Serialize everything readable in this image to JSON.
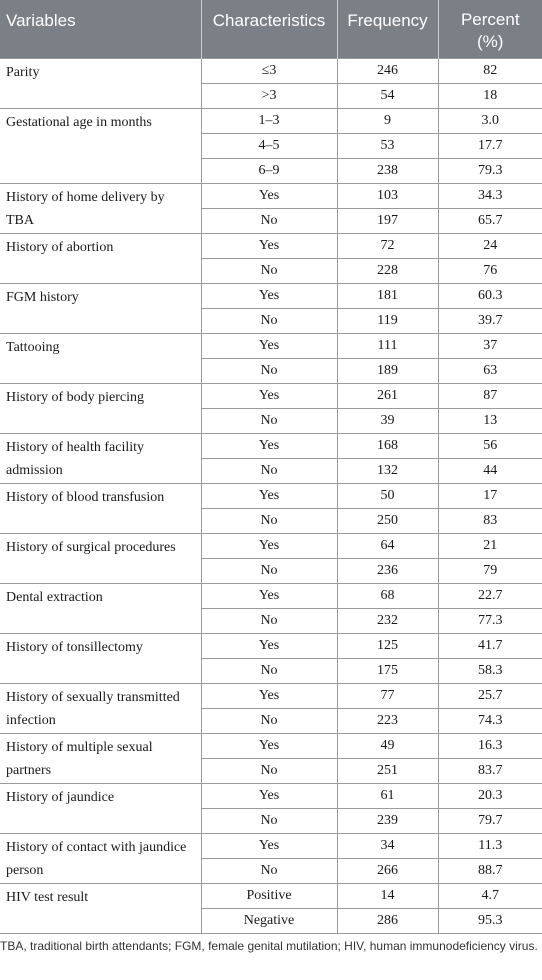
{
  "table": {
    "headers": {
      "variables": "Variables",
      "characteristics": "Characteristics",
      "frequency": "Frequency",
      "percent_line1": "Percent",
      "percent_line2": "(%)"
    },
    "groups": [
      {
        "variable": "Parity",
        "rows": [
          {
            "characteristic": "≤3",
            "frequency": "246",
            "percent": "82"
          },
          {
            "characteristic": ">3",
            "frequency": "54",
            "percent": "18"
          }
        ]
      },
      {
        "variable": "Gestational age in months",
        "rows": [
          {
            "characteristic": "1–3",
            "frequency": "9",
            "percent": "3.0"
          },
          {
            "characteristic": "4–5",
            "frequency": "53",
            "percent": "17.7"
          },
          {
            "characteristic": "6–9",
            "frequency": "238",
            "percent": "79.3"
          }
        ]
      },
      {
        "variable": "History of home delivery by TBA",
        "rows": [
          {
            "characteristic": "Yes",
            "frequency": "103",
            "percent": "34.3"
          },
          {
            "characteristic": "No",
            "frequency": "197",
            "percent": "65.7"
          }
        ]
      },
      {
        "variable": "History of abortion",
        "rows": [
          {
            "characteristic": "Yes",
            "frequency": "72",
            "percent": "24"
          },
          {
            "characteristic": "No",
            "frequency": "228",
            "percent": "76"
          }
        ]
      },
      {
        "variable": "FGM history",
        "rows": [
          {
            "characteristic": "Yes",
            "frequency": "181",
            "percent": "60.3"
          },
          {
            "characteristic": "No",
            "frequency": "119",
            "percent": "39.7"
          }
        ]
      },
      {
        "variable": "Tattooing",
        "rows": [
          {
            "characteristic": "Yes",
            "frequency": "111",
            "percent": "37"
          },
          {
            "characteristic": "No",
            "frequency": "189",
            "percent": "63"
          }
        ]
      },
      {
        "variable": "History of body piercing",
        "rows": [
          {
            "characteristic": "Yes",
            "frequency": "261",
            "percent": "87"
          },
          {
            "characteristic": "No",
            "frequency": "39",
            "percent": "13"
          }
        ]
      },
      {
        "variable": "History of health facility admission",
        "rows": [
          {
            "characteristic": "Yes",
            "frequency": "168",
            "percent": "56"
          },
          {
            "characteristic": "No",
            "frequency": "132",
            "percent": "44"
          }
        ]
      },
      {
        "variable": "History of blood transfusion",
        "rows": [
          {
            "characteristic": "Yes",
            "frequency": "50",
            "percent": "17"
          },
          {
            "characteristic": "No",
            "frequency": "250",
            "percent": "83"
          }
        ]
      },
      {
        "variable": "History of surgical procedures",
        "rows": [
          {
            "characteristic": "Yes",
            "frequency": "64",
            "percent": "21"
          },
          {
            "characteristic": "No",
            "frequency": "236",
            "percent": "79"
          }
        ]
      },
      {
        "variable": "Dental extraction",
        "rows": [
          {
            "characteristic": "Yes",
            "frequency": "68",
            "percent": "22.7"
          },
          {
            "characteristic": "No",
            "frequency": "232",
            "percent": "77.3"
          }
        ]
      },
      {
        "variable": "History of tonsillectomy",
        "rows": [
          {
            "characteristic": "Yes",
            "frequency": "125",
            "percent": "41.7"
          },
          {
            "characteristic": "No",
            "frequency": "175",
            "percent": "58.3"
          }
        ]
      },
      {
        "variable": "History of sexually transmitted infection",
        "rows": [
          {
            "characteristic": "Yes",
            "frequency": "77",
            "percent": "25.7"
          },
          {
            "characteristic": "No",
            "frequency": "223",
            "percent": "74.3"
          }
        ]
      },
      {
        "variable": "History of multiple sexual partners",
        "rows": [
          {
            "characteristic": "Yes",
            "frequency": "49",
            "percent": "16.3"
          },
          {
            "characteristic": "No",
            "frequency": "251",
            "percent": "83.7"
          }
        ]
      },
      {
        "variable": "History of jaundice",
        "rows": [
          {
            "characteristic": "Yes",
            "frequency": "61",
            "percent": "20.3"
          },
          {
            "characteristic": "No",
            "frequency": "239",
            "percent": "79.7"
          }
        ]
      },
      {
        "variable": "History of contact with jaundice person",
        "rows": [
          {
            "characteristic": "Yes",
            "frequency": "34",
            "percent": "11.3"
          },
          {
            "characteristic": "No",
            "frequency": "266",
            "percent": "88.7"
          }
        ]
      },
      {
        "variable": "HIV test result",
        "rows": [
          {
            "characteristic": "Positive",
            "frequency": "14",
            "percent": "4.7"
          },
          {
            "characteristic": "Negative",
            "frequency": "286",
            "percent": "95.3"
          }
        ]
      }
    ]
  },
  "footnote": "TBA, traditional birth attendants; FGM, female genital mutilation; HIV, human immunodeficiency virus.",
  "colors": {
    "header_background": "#7b7f86",
    "header_text": "#ffffff",
    "rule": "#9a9a9a"
  }
}
